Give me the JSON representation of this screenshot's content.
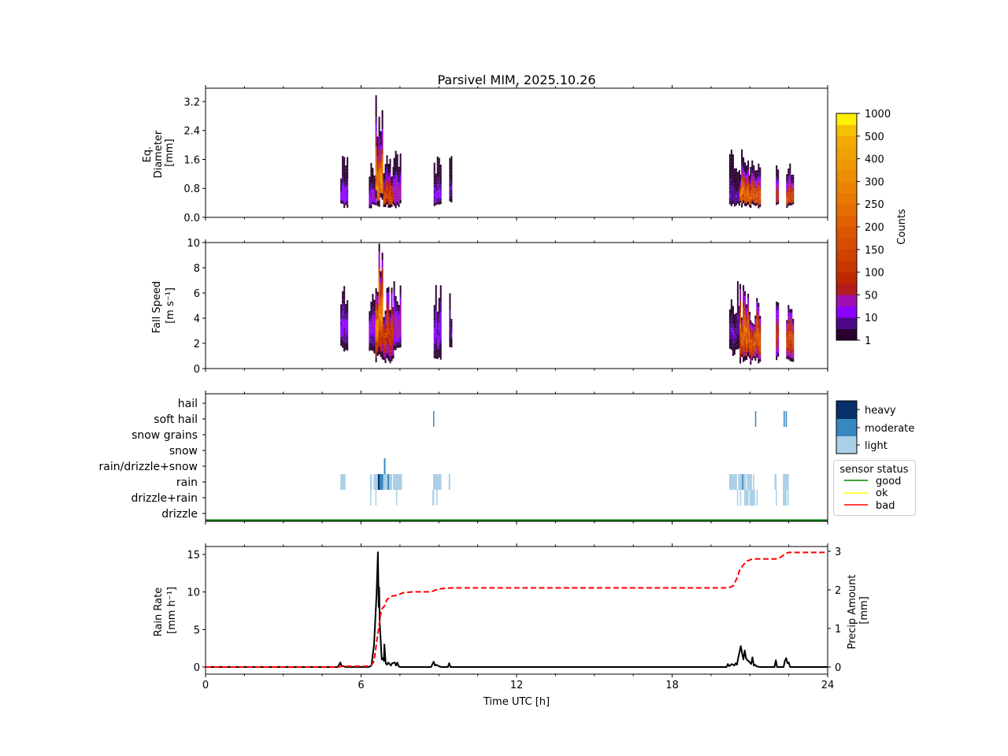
{
  "chart_data": [
    {
      "id": "diameter",
      "type": "heatmap",
      "title": "Parsivel MIM, 2025.10.26",
      "ylabel_lines": [
        "Eq.",
        "Diameter",
        "[mm]"
      ],
      "xlim": [
        0,
        24
      ],
      "ylim": [
        0,
        3.55
      ],
      "yticks": [
        0.0,
        0.8,
        1.6,
        2.4,
        3.2
      ],
      "ytick_labels": [
        "0.0",
        "0.8",
        "1.6",
        "2.4",
        "3.2"
      ],
      "xticks_major": [
        0,
        6,
        12,
        18,
        24
      ],
      "events": [
        {
          "t0": 5.2,
          "t1": 5.45,
          "dmin": 0.25,
          "dmax": 1.75,
          "peak": 15
        },
        {
          "t0": 6.3,
          "t1": 6.55,
          "dmin": 0.25,
          "dmax": 1.55,
          "peak": 20
        },
        {
          "t0": 6.55,
          "t1": 6.85,
          "dmin": 0.25,
          "dmax": 3.5,
          "peak": 300
        },
        {
          "t0": 6.85,
          "t1": 7.25,
          "dmin": 0.25,
          "dmax": 1.75,
          "peak": 150
        },
        {
          "t0": 7.25,
          "t1": 7.5,
          "dmin": 0.25,
          "dmax": 2.0,
          "peak": 40
        },
        {
          "t0": 8.8,
          "t1": 9.05,
          "dmin": 0.25,
          "dmax": 1.75,
          "peak": 15
        },
        {
          "t0": 9.4,
          "t1": 9.47,
          "dmin": 0.3,
          "dmax": 1.75,
          "peak": 10
        },
        {
          "t0": 20.2,
          "t1": 20.6,
          "dmin": 0.25,
          "dmax": 2.0,
          "peak": 10
        },
        {
          "t0": 20.6,
          "t1": 21.0,
          "dmin": 0.25,
          "dmax": 1.9,
          "peak": 250
        },
        {
          "t0": 21.0,
          "t1": 21.4,
          "dmin": 0.25,
          "dmax": 1.6,
          "peak": 200
        },
        {
          "t0": 22.0,
          "t1": 22.1,
          "dmin": 0.25,
          "dmax": 1.5,
          "peak": 80
        },
        {
          "t0": 22.4,
          "t1": 22.7,
          "dmin": 0.25,
          "dmax": 1.5,
          "peak": 150
        }
      ]
    },
    {
      "id": "fallspeed",
      "type": "heatmap",
      "ylabel_lines": [
        "Fall Speed",
        "[m s⁻¹]"
      ],
      "xlim": [
        0,
        24
      ],
      "ylim": [
        0,
        10
      ],
      "yticks": [
        0,
        2,
        4,
        6,
        8,
        10
      ],
      "ytick_labels": [
        "0",
        "2",
        "4",
        "6",
        "8",
        "10"
      ],
      "events": [
        {
          "t0": 5.2,
          "t1": 5.45,
          "vmin": 1.3,
          "vmax": 7.0,
          "peak": 15
        },
        {
          "t0": 6.3,
          "t1": 6.55,
          "vmin": 1.0,
          "vmax": 6.0,
          "peak": 20
        },
        {
          "t0": 6.55,
          "t1": 6.85,
          "vmin": 0.3,
          "vmax": 10.0,
          "peak": 300
        },
        {
          "t0": 6.85,
          "t1": 7.25,
          "vmin": 0.3,
          "vmax": 7.0,
          "peak": 150
        },
        {
          "t0": 7.25,
          "t1": 7.5,
          "vmin": 1.3,
          "vmax": 7.0,
          "peak": 40
        },
        {
          "t0": 8.8,
          "t1": 9.05,
          "vmin": 0.7,
          "vmax": 7.0,
          "peak": 15
        },
        {
          "t0": 9.4,
          "t1": 9.47,
          "vmin": 1.3,
          "vmax": 6.0,
          "peak": 10
        },
        {
          "t0": 20.2,
          "t1": 20.6,
          "vmin": 1.0,
          "vmax": 7.0,
          "peak": 10
        },
        {
          "t0": 20.6,
          "t1": 21.0,
          "vmin": 0.3,
          "vmax": 7.0,
          "peak": 250
        },
        {
          "t0": 21.0,
          "t1": 21.4,
          "vmin": 0.3,
          "vmax": 6.0,
          "peak": 200
        },
        {
          "t0": 22.0,
          "t1": 22.1,
          "vmin": 0.5,
          "vmax": 6.0,
          "peak": 80
        },
        {
          "t0": 22.4,
          "t1": 22.7,
          "vmin": 0.3,
          "vmax": 6.0,
          "peak": 150
        }
      ]
    },
    {
      "id": "colorbar_counts",
      "type": "colorbar",
      "label": "Counts",
      "tick_labels": [
        "1",
        "10",
        "50",
        "100",
        "150",
        "200",
        "250",
        "300",
        "400",
        "500",
        "1000"
      ],
      "colors": [
        "#2a0030",
        "#4b0888",
        "#8b00ff",
        "#a010b0",
        "#b21c1c",
        "#c02800",
        "#c83600",
        "#cf4200",
        "#d64c00",
        "#dc5600",
        "#e06000",
        "#e46c00",
        "#e77800",
        "#ea8400",
        "#ec8e00",
        "#ee9800",
        "#f0a200",
        "#f2aa00",
        "#f5c000",
        "#fff200"
      ]
    },
    {
      "id": "precip_type",
      "type": "heatmap",
      "categories": [
        "hail",
        "soft hail",
        "snow grains",
        "snow",
        "rain/drizzle+snow",
        "rain",
        "drizzle+rain",
        "drizzle"
      ],
      "intensity_legend": [
        "heavy",
        "moderate",
        "light"
      ],
      "intensity_colors": {
        "heavy": "#08306b",
        "moderate": "#3787c0",
        "light": "#abd0e6"
      },
      "sensor_status_legend": {
        "title": "sensor status",
        "entries": [
          {
            "label": "good",
            "color": "#008000"
          },
          {
            "label": "ok",
            "color": "#ffff00"
          },
          {
            "label": "bad",
            "color": "#ff0000"
          }
        ]
      },
      "sensor_status_series": [
        {
          "t0": 0,
          "t1": 24,
          "status": "good"
        }
      ],
      "segments": [
        {
          "cat": "rain",
          "t0": 5.2,
          "t1": 5.4,
          "level": "light"
        },
        {
          "cat": "rain",
          "t0": 6.35,
          "t1": 6.42,
          "level": "light"
        },
        {
          "cat": "rain",
          "t0": 6.48,
          "t1": 6.65,
          "level": "light"
        },
        {
          "cat": "rain",
          "t0": 6.65,
          "t1": 6.72,
          "level": "heavy"
        },
        {
          "cat": "rain",
          "t0": 6.72,
          "t1": 6.85,
          "level": "moderate"
        },
        {
          "cat": "rain",
          "t0": 6.85,
          "t1": 7.02,
          "level": "light"
        },
        {
          "cat": "rain",
          "t0": 7.02,
          "t1": 7.08,
          "level": "moderate"
        },
        {
          "cat": "rain",
          "t0": 7.08,
          "t1": 7.2,
          "level": "light"
        },
        {
          "cat": "rain",
          "t0": 7.23,
          "t1": 7.58,
          "level": "light"
        },
        {
          "cat": "rain",
          "t0": 8.78,
          "t1": 9.1,
          "level": "light"
        },
        {
          "cat": "rain",
          "t0": 9.38,
          "t1": 9.44,
          "level": "light"
        },
        {
          "cat": "rain",
          "t0": 20.2,
          "t1": 20.5,
          "level": "light"
        },
        {
          "cat": "rain",
          "t0": 20.55,
          "t1": 20.85,
          "level": "light"
        },
        {
          "cat": "rain",
          "t0": 20.7,
          "t1": 20.73,
          "level": "moderate"
        },
        {
          "cat": "rain",
          "t0": 20.88,
          "t1": 21.08,
          "level": "light"
        },
        {
          "cat": "rain",
          "t0": 21.12,
          "t1": 21.17,
          "level": "light"
        },
        {
          "cat": "rain",
          "t0": 21.95,
          "t1": 22.03,
          "level": "light"
        },
        {
          "cat": "rain",
          "t0": 22.27,
          "t1": 22.5,
          "level": "light"
        },
        {
          "cat": "drizzle+rain",
          "t0": 6.35,
          "t1": 6.39,
          "level": "light"
        },
        {
          "cat": "drizzle+rain",
          "t0": 6.55,
          "t1": 6.59,
          "level": "light"
        },
        {
          "cat": "drizzle+rain",
          "t0": 7.35,
          "t1": 7.4,
          "level": "light"
        },
        {
          "cat": "drizzle+rain",
          "t0": 8.75,
          "t1": 8.82,
          "level": "light"
        },
        {
          "cat": "drizzle+rain",
          "t0": 8.9,
          "t1": 8.95,
          "level": "light"
        },
        {
          "cat": "drizzle+rain",
          "t0": 20.5,
          "t1": 20.55,
          "level": "light"
        },
        {
          "cat": "drizzle+rain",
          "t0": 20.62,
          "t1": 20.67,
          "level": "light"
        },
        {
          "cat": "drizzle+rain",
          "t0": 20.78,
          "t1": 20.95,
          "level": "light"
        },
        {
          "cat": "drizzle+rain",
          "t0": 20.98,
          "t1": 21.2,
          "level": "light"
        },
        {
          "cat": "drizzle+rain",
          "t0": 21.25,
          "t1": 21.3,
          "level": "light"
        },
        {
          "cat": "drizzle+rain",
          "t0": 22.0,
          "t1": 22.04,
          "level": "light"
        },
        {
          "cat": "drizzle+rain",
          "t0": 22.27,
          "t1": 22.42,
          "level": "light"
        },
        {
          "cat": "drizzle+rain",
          "t0": 22.45,
          "t1": 22.5,
          "level": "light"
        },
        {
          "cat": "rain/drizzle+snow",
          "t0": 6.88,
          "t1": 6.94,
          "level": "moderate"
        },
        {
          "cat": "soft hail",
          "t0": 8.78,
          "t1": 8.81,
          "level": "moderate"
        },
        {
          "cat": "soft hail",
          "t0": 21.2,
          "t1": 21.23,
          "level": "moderate"
        },
        {
          "cat": "soft hail",
          "t0": 22.3,
          "t1": 22.35,
          "level": "moderate"
        },
        {
          "cat": "soft hail",
          "t0": 22.38,
          "t1": 22.42,
          "level": "moderate"
        }
      ]
    },
    {
      "id": "rainrate",
      "type": "line",
      "ylabel_lines": [
        "Rain Rate",
        "[mm h⁻¹]"
      ],
      "y2label_lines": [
        "Precip Amount",
        "[mm]"
      ],
      "xlabel": "Time UTC [h]",
      "xlim": [
        0,
        24
      ],
      "ylim": [
        -0.95,
        16
      ],
      "y2lim": [
        -0.19,
        3.1
      ],
      "xticks": [
        0,
        6,
        12,
        18,
        24
      ],
      "xtick_labels": [
        "0",
        "6",
        "12",
        "18",
        "24"
      ],
      "yticks": [
        0,
        5,
        10,
        15
      ],
      "ytick_labels": [
        "0",
        "5",
        "10",
        "15"
      ],
      "y2ticks": [
        0,
        1,
        2,
        3
      ],
      "y2tick_labels": [
        "0",
        "1",
        "2",
        "3"
      ],
      "series": [
        {
          "name": "Rain Rate",
          "axis": "left",
          "color": "#000000",
          "style": "solid",
          "x": [
            0,
            5.1,
            5.2,
            5.25,
            5.3,
            5.4,
            6.3,
            6.4,
            6.5,
            6.6,
            6.65,
            6.68,
            6.7,
            6.72,
            6.75,
            6.78,
            6.8,
            6.85,
            6.88,
            6.9,
            6.95,
            7.0,
            7.05,
            7.1,
            7.15,
            7.2,
            7.3,
            7.35,
            7.4,
            7.45,
            7.5,
            7.55,
            7.6,
            8.7,
            8.8,
            8.85,
            8.9,
            9.0,
            9.1,
            9.35,
            9.4,
            9.45,
            20.1,
            20.15,
            20.2,
            20.3,
            20.4,
            20.45,
            20.5,
            20.55,
            20.6,
            20.65,
            20.7,
            20.75,
            20.8,
            20.85,
            20.9,
            20.95,
            21.0,
            21.05,
            21.1,
            21.15,
            21.2,
            21.25,
            21.3,
            21.4,
            21.95,
            22.0,
            22.05,
            22.3,
            22.35,
            22.4,
            22.45,
            22.5,
            22.55,
            24
          ],
          "y": [
            0,
            0,
            0.6,
            0.1,
            0.15,
            0,
            0,
            0.2,
            3.0,
            10.0,
            15.3,
            8.0,
            10.6,
            5.8,
            4.0,
            2.0,
            1.0,
            1.2,
            0.8,
            3.0,
            0.5,
            0.3,
            0.6,
            0.4,
            0.2,
            0.5,
            0.6,
            0.2,
            0.6,
            0.1,
            0,
            0,
            0,
            0,
            0.7,
            0.2,
            0.3,
            0.1,
            0,
            0,
            0.5,
            0,
            0,
            0.4,
            0.1,
            0.4,
            0.2,
            0.5,
            0.3,
            1.2,
            2.0,
            2.8,
            1.8,
            1.0,
            2.2,
            1.2,
            0.9,
            0.8,
            0.6,
            0.4,
            1.3,
            0.2,
            0.3,
            0.1,
            0.05,
            0,
            0,
            0.9,
            0,
            0,
            0.8,
            1.2,
            0.5,
            0.6,
            0,
            0
          ]
        },
        {
          "name": "Precip Amount",
          "axis": "right",
          "color": "#ff0000",
          "style": "dashed",
          "x": [
            0,
            5.1,
            5.3,
            6.2,
            6.4,
            6.5,
            6.6,
            6.7,
            6.75,
            6.8,
            6.9,
            7.0,
            7.2,
            7.4,
            7.6,
            8.0,
            8.7,
            8.9,
            9.1,
            9.5,
            10,
            15,
            20.0,
            20.2,
            20.35,
            20.5,
            20.6,
            20.75,
            20.9,
            21.1,
            21.3,
            21.6,
            22.0,
            22.2,
            22.35,
            22.5,
            24
          ],
          "y": [
            0,
            0,
            0.02,
            0.02,
            0.05,
            0.15,
            0.65,
            1.1,
            1.35,
            1.5,
            1.58,
            1.75,
            1.84,
            1.86,
            1.92,
            1.95,
            1.95,
            2.0,
            2.03,
            2.05,
            2.05,
            2.05,
            2.05,
            2.06,
            2.1,
            2.3,
            2.5,
            2.65,
            2.75,
            2.8,
            2.8,
            2.8,
            2.8,
            2.85,
            2.93,
            2.97,
            2.97
          ]
        }
      ]
    }
  ]
}
